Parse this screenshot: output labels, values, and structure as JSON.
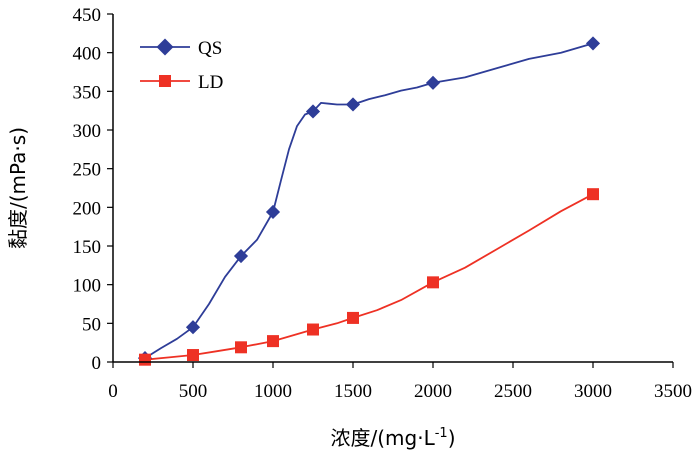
{
  "chart_data": {
    "type": "line",
    "xlabel": "浓度/(mg·L",
    "xlabel_sup": "-1",
    "xlabel_close": ")",
    "ylabel": "黏度/(mPa·s)",
    "xlim": [
      0,
      3500
    ],
    "ylim": [
      0,
      450
    ],
    "xticks": [
      "0",
      "500",
      "1000",
      "1500",
      "2000",
      "2500",
      "3000",
      "3500"
    ],
    "yticks": [
      "0",
      "50",
      "100",
      "150",
      "200",
      "250",
      "300",
      "350",
      "400",
      "450"
    ],
    "grid": false,
    "legend_position": "top-left",
    "series": [
      {
        "name": "QS",
        "color": "#2E3D98",
        "marker": "diamond",
        "x": [
          200,
          500,
          800,
          1000,
          1250,
          1500,
          2000,
          3000
        ],
        "y": [
          5,
          45,
          137,
          194,
          324,
          333,
          361,
          412
        ],
        "curve": [
          [
            200,
            5
          ],
          [
            300,
            18
          ],
          [
            400,
            30
          ],
          [
            500,
            45
          ],
          [
            600,
            75
          ],
          [
            700,
            110
          ],
          [
            800,
            137
          ],
          [
            900,
            158
          ],
          [
            1000,
            194
          ],
          [
            1050,
            235
          ],
          [
            1100,
            275
          ],
          [
            1150,
            305
          ],
          [
            1200,
            320
          ],
          [
            1250,
            324
          ],
          [
            1300,
            335
          ],
          [
            1350,
            334
          ],
          [
            1400,
            333
          ],
          [
            1500,
            333
          ],
          [
            1600,
            340
          ],
          [
            1700,
            345
          ],
          [
            1800,
            351
          ],
          [
            1900,
            355
          ],
          [
            2000,
            361
          ],
          [
            2200,
            368
          ],
          [
            2400,
            380
          ],
          [
            2600,
            392
          ],
          [
            2800,
            400
          ],
          [
            3000,
            412
          ]
        ]
      },
      {
        "name": "LD",
        "color": "#EE3124",
        "marker": "square",
        "x": [
          200,
          500,
          800,
          1000,
          1250,
          1500,
          2000,
          3000
        ],
        "y": [
          3,
          9,
          19,
          27,
          42,
          57,
          103,
          217
        ],
        "curve": [
          [
            200,
            3
          ],
          [
            350,
            6
          ],
          [
            500,
            9
          ],
          [
            650,
            14
          ],
          [
            800,
            19
          ],
          [
            900,
            23
          ],
          [
            1000,
            27
          ],
          [
            1100,
            33
          ],
          [
            1250,
            42
          ],
          [
            1400,
            50
          ],
          [
            1500,
            57
          ],
          [
            1650,
            67
          ],
          [
            1800,
            80
          ],
          [
            2000,
            103
          ],
          [
            2200,
            122
          ],
          [
            2400,
            146
          ],
          [
            2600,
            170
          ],
          [
            2800,
            195
          ],
          [
            3000,
            217
          ]
        ]
      }
    ]
  }
}
